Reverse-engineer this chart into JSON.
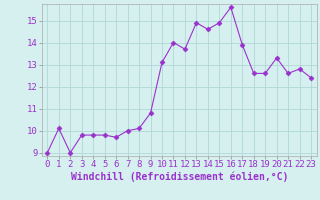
{
  "x": [
    0,
    1,
    2,
    3,
    4,
    5,
    6,
    7,
    8,
    9,
    10,
    11,
    12,
    13,
    14,
    15,
    16,
    17,
    18,
    19,
    20,
    21,
    22,
    23
  ],
  "y": [
    9.0,
    10.1,
    9.0,
    9.8,
    9.8,
    9.8,
    9.7,
    10.0,
    10.1,
    10.8,
    13.1,
    14.0,
    13.7,
    14.9,
    14.6,
    14.9,
    15.6,
    13.9,
    12.6,
    12.6,
    13.3,
    12.6,
    12.8,
    12.4
  ],
  "line_color": "#9932CC",
  "marker": "D",
  "marker_size": 2.5,
  "bg_color": "#d6f0f0",
  "grid_color": "#b0d8d8",
  "xlabel": "Windchill (Refroidissement éolien,°C)",
  "xlabel_fontsize": 7,
  "tick_fontsize": 6.5,
  "ylim_min": 8.85,
  "ylim_max": 15.75,
  "xlim_min": -0.5,
  "xlim_max": 23.5,
  "yticks": [
    9,
    10,
    11,
    12,
    13,
    14,
    15
  ],
  "xticks": [
    0,
    1,
    2,
    3,
    4,
    5,
    6,
    7,
    8,
    9,
    10,
    11,
    12,
    13,
    14,
    15,
    16,
    17,
    18,
    19,
    20,
    21,
    22,
    23
  ]
}
